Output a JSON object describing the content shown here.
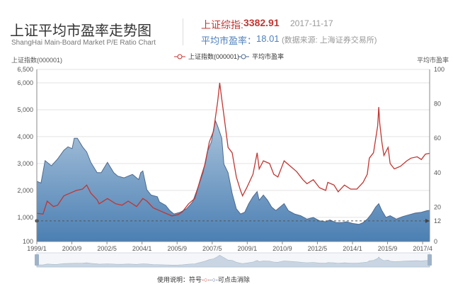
{
  "header": {
    "title": "上证平均市盈率走势图",
    "subtitle": "ShangHai Main-Board Market P/E Ratio Chart",
    "index_label": "上证综指:",
    "index_value": "3382.91",
    "date": "2017-11-17",
    "pe_label": "平均市盈率：",
    "pe_value": "18.01",
    "source": "(数据来源: 上海证券交易所)"
  },
  "colors": {
    "index_line": "#c23531",
    "pe_line": "#4f6a8f",
    "pe_area": "#7fa6c8"
  },
  "footer": {
    "prefix": "使用说明：符号",
    "red_symbol": "-○-",
    "blue_symbol": "-○-",
    "suffix": "可点击消除"
  },
  "chart_data": {
    "type": "line",
    "title": "上证平均市盈率走势图",
    "left_axis_label": "上证指数(000001)",
    "right_axis_label": "平均市盈率",
    "legend": [
      "上证指数(000001)",
      "平均市盈率"
    ],
    "legend_position": "top-center",
    "grid": true,
    "y_left_ticks": [
      100,
      1000,
      2000,
      3000,
      4000,
      5000,
      6000,
      6500
    ],
    "y_left_tick_labels": [
      "100",
      "1,000",
      "2,000",
      "3,000",
      "4,000",
      "5,000",
      "6,000",
      "6,500"
    ],
    "y_right_ticks": [
      0,
      12,
      20,
      40,
      60,
      80,
      100
    ],
    "x_tick_labels": [
      "1999/1",
      "2000/9",
      "2002/5",
      "2004/1",
      "2005/9",
      "2007/5",
      "2009/1",
      "2010/9",
      "2012/5",
      "2014/1",
      "2015/9",
      "2017/4"
    ],
    "x_range": [
      1999.0,
      2017.9
    ],
    "reference_line": {
      "axis": "right",
      "value": 12
    },
    "series": [
      {
        "name": "上证指数(000001)",
        "axis": "left",
        "points": [
          [
            1999.0,
            1150
          ],
          [
            1999.3,
            1120
          ],
          [
            1999.5,
            1600
          ],
          [
            1999.8,
            1400
          ],
          [
            2000.0,
            1450
          ],
          [
            2000.3,
            1800
          ],
          [
            2000.6,
            1900
          ],
          [
            2000.9,
            2000
          ],
          [
            2001.2,
            2050
          ],
          [
            2001.4,
            2200
          ],
          [
            2001.6,
            1900
          ],
          [
            2001.9,
            1650
          ],
          [
            2002.0,
            1500
          ],
          [
            2002.4,
            1700
          ],
          [
            2002.8,
            1500
          ],
          [
            2003.1,
            1450
          ],
          [
            2003.4,
            1600
          ],
          [
            2003.8,
            1400
          ],
          [
            2004.1,
            1700
          ],
          [
            2004.3,
            1600
          ],
          [
            2004.6,
            1350
          ],
          [
            2004.9,
            1250
          ],
          [
            2005.2,
            1150
          ],
          [
            2005.5,
            1050
          ],
          [
            2005.8,
            1100
          ],
          [
            2006.0,
            1200
          ],
          [
            2006.3,
            1500
          ],
          [
            2006.6,
            1700
          ],
          [
            2006.9,
            2500
          ],
          [
            2007.1,
            3000
          ],
          [
            2007.3,
            3800
          ],
          [
            2007.5,
            4200
          ],
          [
            2007.7,
            5300
          ],
          [
            2007.8,
            6000
          ],
          [
            2007.9,
            5400
          ],
          [
            2008.0,
            4800
          ],
          [
            2008.2,
            3600
          ],
          [
            2008.4,
            3400
          ],
          [
            2008.6,
            2500
          ],
          [
            2008.8,
            2000
          ],
          [
            2008.9,
            1800
          ],
          [
            2009.1,
            2100
          ],
          [
            2009.4,
            2600
          ],
          [
            2009.6,
            3400
          ],
          [
            2009.7,
            2800
          ],
          [
            2009.9,
            3100
          ],
          [
            2010.2,
            3000
          ],
          [
            2010.4,
            2600
          ],
          [
            2010.6,
            2500
          ],
          [
            2010.8,
            2900
          ],
          [
            2010.9,
            3100
          ],
          [
            2011.2,
            2900
          ],
          [
            2011.5,
            2700
          ],
          [
            2011.8,
            2400
          ],
          [
            2012.0,
            2250
          ],
          [
            2012.3,
            2400
          ],
          [
            2012.6,
            2100
          ],
          [
            2012.9,
            2000
          ],
          [
            2013.0,
            2300
          ],
          [
            2013.3,
            2200
          ],
          [
            2013.5,
            1950
          ],
          [
            2013.8,
            2200
          ],
          [
            2014.1,
            2050
          ],
          [
            2014.4,
            2050
          ],
          [
            2014.7,
            2300
          ],
          [
            2014.9,
            2600
          ],
          [
            2015.0,
            3200
          ],
          [
            2015.2,
            3400
          ],
          [
            2015.4,
            4400
          ],
          [
            2015.45,
            5100
          ],
          [
            2015.5,
            4500
          ],
          [
            2015.6,
            3800
          ],
          [
            2015.7,
            3300
          ],
          [
            2015.9,
            3600
          ],
          [
            2016.0,
            3000
          ],
          [
            2016.2,
            2800
          ],
          [
            2016.5,
            2900
          ],
          [
            2016.8,
            3100
          ],
          [
            2017.0,
            3200
          ],
          [
            2017.3,
            3250
          ],
          [
            2017.5,
            3150
          ],
          [
            2017.7,
            3350
          ],
          [
            2017.9,
            3380
          ]
        ]
      },
      {
        "name": "平均市盈率",
        "axis": "right",
        "points": [
          [
            1999.0,
            35
          ],
          [
            1999.2,
            34
          ],
          [
            1999.4,
            47
          ],
          [
            1999.7,
            44
          ],
          [
            2000.0,
            48
          ],
          [
            2000.3,
            53
          ],
          [
            2000.5,
            55
          ],
          [
            2000.7,
            54
          ],
          [
            2000.8,
            60
          ],
          [
            2000.95,
            60
          ],
          [
            2001.2,
            55
          ],
          [
            2001.4,
            52
          ],
          [
            2001.6,
            46
          ],
          [
            2001.9,
            40
          ],
          [
            2002.1,
            40
          ],
          [
            2002.4,
            46
          ],
          [
            2002.7,
            40
          ],
          [
            2002.9,
            38
          ],
          [
            2003.2,
            37
          ],
          [
            2003.6,
            39
          ],
          [
            2003.9,
            36
          ],
          [
            2004.0,
            40
          ],
          [
            2004.1,
            41
          ],
          [
            2004.3,
            30
          ],
          [
            2004.5,
            27
          ],
          [
            2004.8,
            26
          ],
          [
            2004.9,
            23
          ],
          [
            2005.2,
            21
          ],
          [
            2005.4,
            18
          ],
          [
            2005.6,
            16
          ],
          [
            2005.9,
            17
          ],
          [
            2006.2,
            19
          ],
          [
            2006.5,
            23
          ],
          [
            2006.8,
            33
          ],
          [
            2007.0,
            40
          ],
          [
            2007.2,
            52
          ],
          [
            2007.4,
            58
          ],
          [
            2007.5,
            65
          ],
          [
            2007.6,
            70
          ],
          [
            2007.7,
            67
          ],
          [
            2007.9,
            60
          ],
          [
            2008.0,
            45
          ],
          [
            2008.2,
            40
          ],
          [
            2008.4,
            28
          ],
          [
            2008.6,
            19
          ],
          [
            2008.8,
            16
          ],
          [
            2009.0,
            17
          ],
          [
            2009.2,
            22
          ],
          [
            2009.4,
            26
          ],
          [
            2009.6,
            29
          ],
          [
            2009.7,
            24
          ],
          [
            2009.9,
            27
          ],
          [
            2010.1,
            24
          ],
          [
            2010.3,
            20
          ],
          [
            2010.5,
            18
          ],
          [
            2010.7,
            20
          ],
          [
            2010.9,
            22
          ],
          [
            2011.1,
            18
          ],
          [
            2011.4,
            16
          ],
          [
            2011.7,
            15
          ],
          [
            2012.0,
            13
          ],
          [
            2012.3,
            14
          ],
          [
            2012.6,
            12
          ],
          [
            2012.9,
            11.5
          ],
          [
            2013.1,
            12.5
          ],
          [
            2013.4,
            11
          ],
          [
            2013.7,
            11
          ],
          [
            2013.9,
            11.5
          ],
          [
            2014.2,
            10.5
          ],
          [
            2014.5,
            10
          ],
          [
            2014.7,
            11
          ],
          [
            2014.9,
            13
          ],
          [
            2015.1,
            16
          ],
          [
            2015.3,
            20
          ],
          [
            2015.45,
            22
          ],
          [
            2015.6,
            18
          ],
          [
            2015.8,
            14
          ],
          [
            2016.0,
            15
          ],
          [
            2016.3,
            13
          ],
          [
            2016.6,
            14.5
          ],
          [
            2016.9,
            15.5
          ],
          [
            2017.2,
            16.5
          ],
          [
            2017.5,
            17
          ],
          [
            2017.8,
            18
          ],
          [
            2017.9,
            18.01
          ]
        ]
      }
    ]
  }
}
